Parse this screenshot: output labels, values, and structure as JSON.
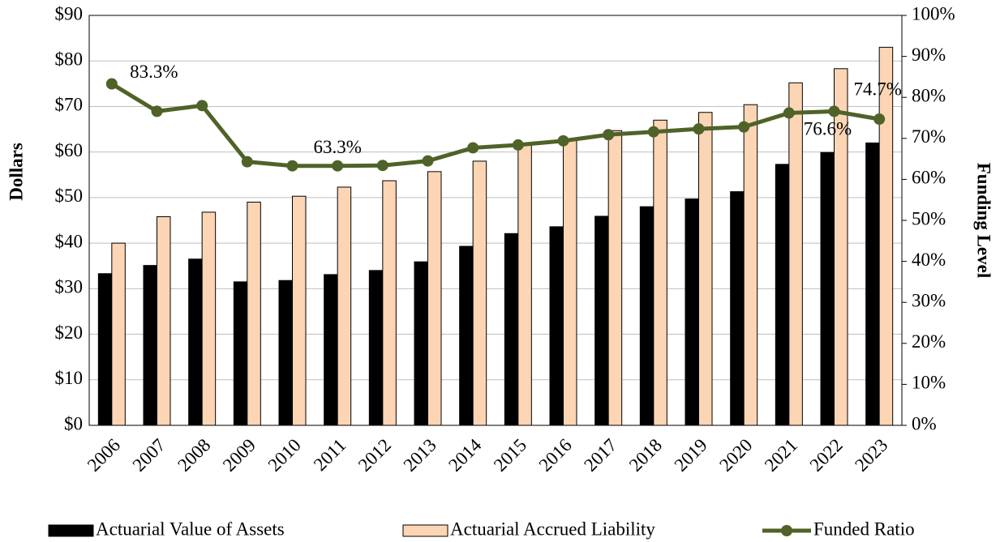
{
  "chart_data": {
    "type": "bar-line",
    "y_label": "Dollars",
    "y2_label": "Funding Level",
    "categories": [
      "2006",
      "2007",
      "2008",
      "2009",
      "2010",
      "2011",
      "2012",
      "2013",
      "2014",
      "2015",
      "2016",
      "2017",
      "2018",
      "2019",
      "2020",
      "2021",
      "2022",
      "2023"
    ],
    "series": [
      {
        "name": "Actuarial Value of Assets",
        "type": "bar",
        "color": "#000000",
        "values": [
          33.3,
          35.1,
          36.5,
          31.5,
          31.8,
          33.1,
          34.0,
          35.9,
          39.3,
          42.1,
          43.6,
          45.9,
          48.0,
          49.7,
          51.3,
          57.3,
          59.9,
          62.0
        ]
      },
      {
        "name": "Actuarial Accrued Liability",
        "type": "bar",
        "color": "#fcd5b4",
        "values": [
          40.0,
          45.8,
          46.8,
          49.0,
          50.3,
          52.3,
          53.7,
          55.7,
          58.0,
          61.6,
          62.8,
          64.7,
          67.0,
          68.7,
          70.4,
          75.2,
          78.3,
          83.0
        ]
      },
      {
        "name": "Funded Ratio",
        "type": "line",
        "color": "#4f6228",
        "axis": "y2",
        "values": [
          83.3,
          76.6,
          78.0,
          64.3,
          63.3,
          63.3,
          63.4,
          64.5,
          67.7,
          68.4,
          69.4,
          70.9,
          71.6,
          72.3,
          72.8,
          76.2,
          76.6,
          74.7
        ],
        "value_labels": [
          "83.3%",
          null,
          null,
          null,
          null,
          "63.3%",
          null,
          null,
          null,
          null,
          null,
          null,
          null,
          null,
          null,
          null,
          "76.6%",
          "74.7%"
        ]
      }
    ],
    "ylim": [
      0,
      90
    ],
    "yticks": [
      {
        "value": 0,
        "label": "$0"
      },
      {
        "value": 10,
        "label": "$10"
      },
      {
        "value": 20,
        "label": "$20"
      },
      {
        "value": 30,
        "label": "$30"
      },
      {
        "value": 40,
        "label": "$40"
      },
      {
        "value": 50,
        "label": "$50"
      },
      {
        "value": 60,
        "label": "$60"
      },
      {
        "value": 70,
        "label": "$70"
      },
      {
        "value": 80,
        "label": "$80"
      },
      {
        "value": 90,
        "label": "$90"
      }
    ],
    "y2lim": [
      0,
      100
    ],
    "y2ticks": [
      {
        "value": 0,
        "label": "0%"
      },
      {
        "value": 10,
        "label": "10%"
      },
      {
        "value": 20,
        "label": "20%"
      },
      {
        "value": 30,
        "label": "30%"
      },
      {
        "value": 40,
        "label": "40%"
      },
      {
        "value": 50,
        "label": "50%"
      },
      {
        "value": 60,
        "label": "60%"
      },
      {
        "value": 70,
        "label": "70%"
      },
      {
        "value": 80,
        "label": "80%"
      },
      {
        "value": 90,
        "label": "90%"
      },
      {
        "value": 100,
        "label": "100%"
      }
    ],
    "grid": true,
    "legend": "bottom"
  }
}
